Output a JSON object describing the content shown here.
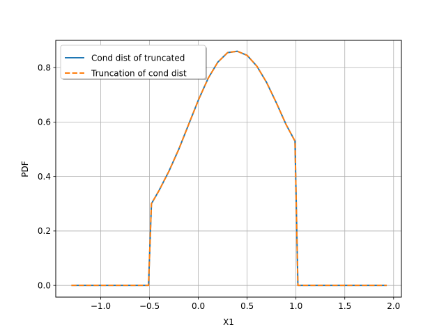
{
  "chart_data": {
    "type": "line",
    "title": "",
    "xlabel": "X1",
    "ylabel": "PDF",
    "xlim": [
      -1.46,
      2.08
    ],
    "ylim": [
      -0.043,
      0.9
    ],
    "grid": true,
    "legend_position": "top-left",
    "x_ticks": [
      {
        "value": -1.0,
        "label": "−1.0"
      },
      {
        "value": -0.5,
        "label": "−0.5"
      },
      {
        "value": 0.0,
        "label": "0.0"
      },
      {
        "value": 0.5,
        "label": "0.5"
      },
      {
        "value": 1.0,
        "label": "1.0"
      },
      {
        "value": 1.5,
        "label": "1.5"
      },
      {
        "value": 2.0,
        "label": "2.0"
      }
    ],
    "y_ticks": [
      {
        "value": 0.0,
        "label": "0.0"
      },
      {
        "value": 0.2,
        "label": "0.2"
      },
      {
        "value": 0.4,
        "label": "0.4"
      },
      {
        "value": 0.6,
        "label": "0.6"
      },
      {
        "value": 0.8,
        "label": "0.8"
      }
    ],
    "series": [
      {
        "name": "Cond dist of truncated",
        "color": "#1f77b4",
        "style": "solid",
        "x": [
          -1.3,
          -1.0,
          -0.6,
          -0.51,
          -0.48,
          -0.4,
          -0.3,
          -0.2,
          -0.1,
          0.0,
          0.1,
          0.2,
          0.3,
          0.4,
          0.5,
          0.6,
          0.7,
          0.8,
          0.9,
          0.99,
          1.02,
          1.2,
          1.5,
          1.93
        ],
        "y": [
          0.0,
          0.0,
          0.0,
          0.0,
          0.3,
          0.35,
          0.42,
          0.5,
          0.59,
          0.68,
          0.76,
          0.82,
          0.855,
          0.86,
          0.845,
          0.805,
          0.745,
          0.67,
          0.59,
          0.53,
          0.0,
          0.0,
          0.0,
          0.0
        ]
      },
      {
        "name": "Truncation of cond dist",
        "color": "#ff7f0e",
        "style": "dashed",
        "x": [
          -1.3,
          -1.0,
          -0.6,
          -0.51,
          -0.48,
          -0.4,
          -0.3,
          -0.2,
          -0.1,
          0.0,
          0.1,
          0.2,
          0.3,
          0.4,
          0.5,
          0.6,
          0.7,
          0.8,
          0.9,
          0.99,
          1.02,
          1.2,
          1.5,
          1.93
        ],
        "y": [
          0.0,
          0.0,
          0.0,
          0.0,
          0.3,
          0.35,
          0.42,
          0.5,
          0.59,
          0.68,
          0.76,
          0.82,
          0.855,
          0.86,
          0.845,
          0.805,
          0.745,
          0.67,
          0.59,
          0.53,
          0.0,
          0.0,
          0.0,
          0.0
        ]
      }
    ]
  }
}
